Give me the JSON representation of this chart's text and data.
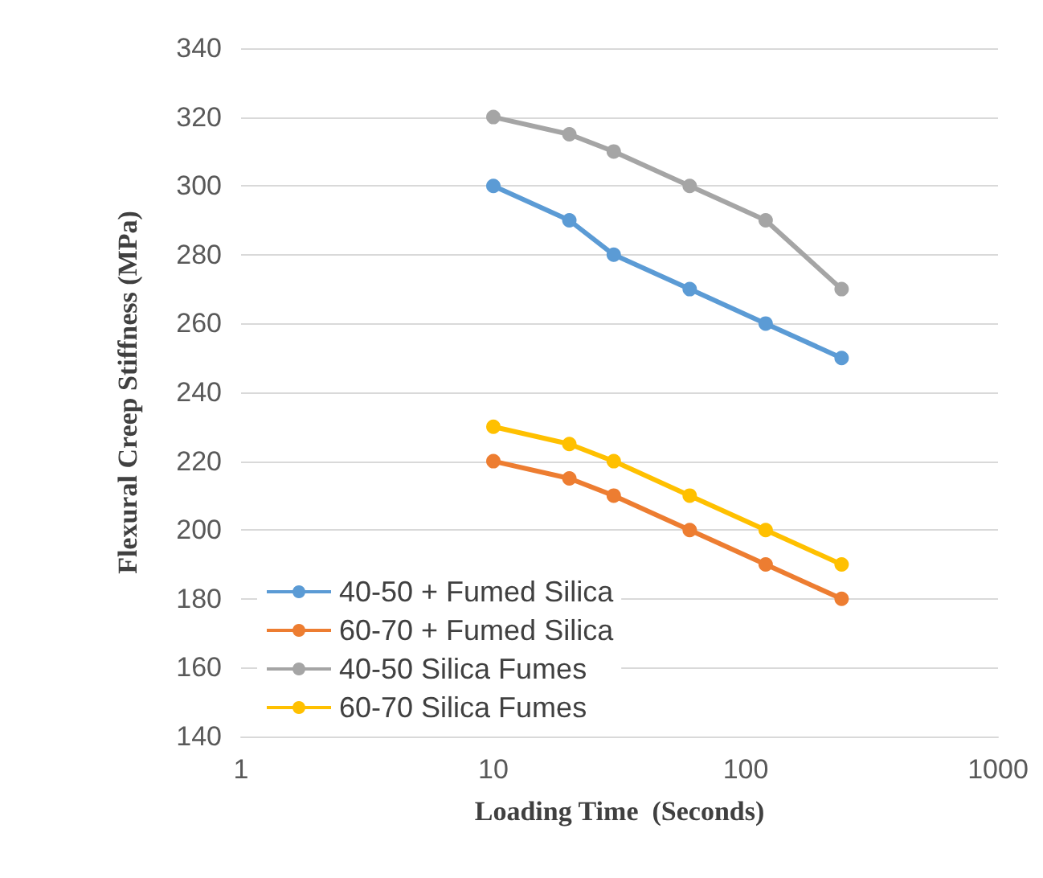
{
  "chart_data": {
    "type": "line",
    "xlabel": "Loading Time  (Seconds)",
    "ylabel": "Flexural Creep Stiffness (MPa)",
    "x": [
      10,
      20,
      30,
      60,
      120,
      240
    ],
    "series": [
      {
        "name": "40-50 + Fumed Silica",
        "color": "#5b9bd5",
        "values": [
          300,
          290,
          280,
          270,
          260,
          250
        ]
      },
      {
        "name": "60-70 + Fumed Silica",
        "color": "#ed7d31",
        "values": [
          220,
          215,
          210,
          200,
          190,
          180
        ]
      },
      {
        "name": "40-50 Silica Fumes",
        "color": "#a5a5a5",
        "values": [
          320,
          315,
          310,
          300,
          290,
          270
        ]
      },
      {
        "name": "60-70 Silica Fumes",
        "color": "#ffc000",
        "values": [
          230,
          225,
          220,
          210,
          200,
          190
        ]
      }
    ],
    "log": "x",
    "xlim": [
      1,
      1000
    ],
    "xticks": [
      1,
      10,
      100,
      1000
    ],
    "ylim": [
      140,
      340
    ],
    "yticks": [
      140,
      160,
      180,
      200,
      220,
      240,
      260,
      280,
      300,
      320,
      340
    ],
    "grid": "y",
    "legend": "bottom left",
    "marker": "circle",
    "line_style": "solid"
  }
}
